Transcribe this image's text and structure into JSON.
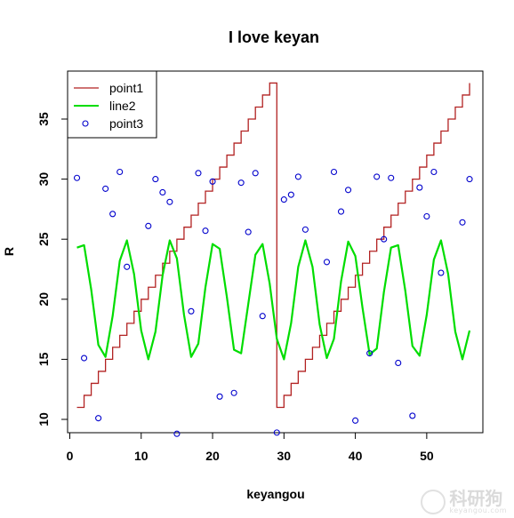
{
  "chart_data": {
    "type": "line",
    "title": "I love keyan",
    "xlabel": "keyangou",
    "ylabel": "R",
    "xlim": [
      0,
      57
    ],
    "ylim": [
      9,
      38.5
    ],
    "xticks": [
      0,
      10,
      20,
      30,
      40,
      50
    ],
    "yticks": [
      10,
      15,
      20,
      25,
      30,
      35
    ],
    "grid": false,
    "legend_position": "top-left",
    "series": [
      {
        "name": "point1",
        "kind": "step",
        "color": "#b22222",
        "x": [
          1,
          2,
          3,
          4,
          5,
          6,
          7,
          8,
          9,
          10,
          11,
          12,
          13,
          14,
          15,
          16,
          17,
          18,
          19,
          20,
          21,
          22,
          23,
          24,
          25,
          26,
          27,
          28,
          29,
          30,
          31,
          32,
          33,
          34,
          35,
          36,
          37,
          38,
          39,
          40,
          41,
          42,
          43,
          44,
          45,
          46,
          47,
          48,
          49,
          50,
          51,
          52,
          53,
          54,
          55,
          56
        ],
        "values": [
          11,
          12,
          13,
          14,
          15,
          16,
          17,
          18,
          19,
          20,
          21,
          22,
          23,
          24,
          25,
          26,
          27,
          28,
          29,
          30,
          31,
          32,
          33,
          34,
          35,
          36,
          37,
          38,
          11,
          12,
          13,
          14,
          15,
          16,
          17,
          18,
          19,
          20,
          21,
          22,
          23,
          24,
          25,
          26,
          27,
          28,
          29,
          30,
          31,
          32,
          33,
          34,
          35,
          36,
          37,
          38
        ]
      },
      {
        "name": "line2",
        "kind": "line",
        "color": "#00dd00",
        "x": [
          1,
          2,
          3,
          4,
          5,
          6,
          7,
          8,
          9,
          10,
          11,
          12,
          13,
          14,
          15,
          16,
          17,
          18,
          19,
          20,
          21,
          22,
          23,
          24,
          25,
          26,
          27,
          28,
          29,
          30,
          31,
          32,
          33,
          34,
          35,
          36,
          37,
          38,
          39,
          40,
          41,
          42,
          43,
          44,
          45,
          46,
          47,
          48,
          49,
          50,
          51,
          52,
          53,
          54,
          55,
          56
        ],
        "values": [
          24.3,
          24.5,
          20.8,
          16.2,
          15.2,
          18.6,
          23.2,
          24.9,
          22.1,
          17.4,
          15.0,
          17.3,
          22.0,
          24.9,
          23.4,
          18.7,
          15.2,
          16.3,
          21.0,
          24.6,
          24.2,
          20.2,
          15.8,
          15.5,
          19.6,
          23.7,
          24.6,
          21.3,
          16.7,
          15.0,
          18.0,
          22.7,
          24.9,
          22.7,
          17.9,
          15.1,
          16.7,
          21.5,
          24.8,
          23.6,
          19.3,
          15.4,
          15.9,
          20.6,
          24.3,
          24.5,
          20.7,
          16.1,
          15.3,
          18.7,
          23.3,
          24.9,
          22.1,
          17.3,
          15.0,
          17.4
        ]
      },
      {
        "name": "point3",
        "kind": "points",
        "color": "#0000cc",
        "x": [
          1,
          2,
          4,
          5,
          6,
          7,
          8,
          11,
          12,
          13,
          14,
          15,
          17,
          18,
          19,
          20,
          21,
          23,
          24,
          25,
          26,
          27,
          29,
          30,
          31,
          32,
          33,
          36,
          37,
          38,
          39,
          40,
          42,
          43,
          44,
          45,
          46,
          48,
          49,
          50,
          51,
          52,
          55,
          56
        ],
        "values": [
          30.1,
          15.1,
          10.1,
          29.2,
          27.1,
          30.6,
          22.7,
          26.1,
          30.0,
          28.9,
          28.1,
          8.8,
          19.0,
          30.5,
          25.7,
          29.8,
          11.9,
          12.2,
          29.7,
          25.6,
          30.5,
          18.6,
          8.9,
          28.3,
          28.7,
          30.2,
          25.8,
          23.1,
          30.6,
          27.3,
          29.1,
          9.9,
          15.5,
          30.2,
          25.0,
          30.1,
          14.7,
          10.3,
          29.3,
          26.9,
          30.6,
          22.2,
          26.4,
          30.0
        ]
      }
    ]
  },
  "watermark": {
    "main": "科研狗",
    "sub": "keyangou.com"
  }
}
